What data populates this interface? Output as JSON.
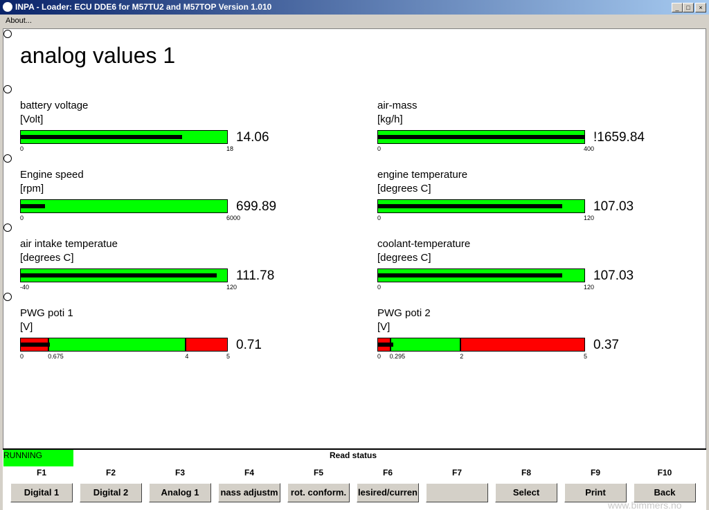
{
  "window": {
    "title": "INPA - Loader:  ECU DDE6 for M57TU2 and M57TOP Version 1.010"
  },
  "menu": [
    "About..."
  ],
  "heading": "analog values 1",
  "gauges": [
    {
      "label": "battery voltage",
      "unit": "[Volt]",
      "value": 14.06,
      "ticks": [
        0,
        18
      ],
      "colors": [
        "#00ff00"
      ]
    },
    {
      "label": "air-mass",
      "unit": "[kg/h]",
      "value": 1659.84,
      "value_label": "!1659.84",
      "ticks": [
        0,
        400
      ],
      "colors": [
        "#00ff00"
      ]
    },
    {
      "label": "Engine speed",
      "unit": "[rpm]",
      "value": 699.89,
      "ticks": [
        0,
        6000
      ],
      "colors": [
        "#00ff00"
      ]
    },
    {
      "label": "engine temperature",
      "unit": "[degrees C]",
      "value": 107.03,
      "ticks": [
        0,
        120
      ],
      "colors": [
        "#00ff00"
      ]
    },
    {
      "label": "air intake temperatue",
      "unit": "[degrees C]",
      "value": 111.78,
      "ticks": [
        -40,
        120
      ],
      "colors": [
        "#00ff00"
      ]
    },
    {
      "label": "coolant-temperature",
      "unit": "[degrees C]",
      "value": 107.03,
      "ticks": [
        0,
        120
      ],
      "colors": [
        "#00ff00"
      ]
    },
    {
      "label": "PWG poti 1",
      "unit": "[V]",
      "value": 0.71,
      "ticks": [
        0,
        0.675,
        4,
        5
      ],
      "colors": [
        "#ff0000",
        "#00ff00",
        "#ff0000"
      ]
    },
    {
      "label": "PWG poti 2",
      "unit": "[V]",
      "value": 0.37,
      "ticks": [
        0,
        0.295,
        2,
        5
      ],
      "colors": [
        "#ff0000",
        "#00ff00",
        "#ff0000"
      ]
    }
  ],
  "status": {
    "state": "RUNNING",
    "message": "Read status"
  },
  "buttons": [
    {
      "key": "F1",
      "label": "Digital 1"
    },
    {
      "key": "F2",
      "label": "Digital 2"
    },
    {
      "key": "F3",
      "label": "Analog 1"
    },
    {
      "key": "F4",
      "label": "nass adjustm"
    },
    {
      "key": "F5",
      "label": "rot. conform."
    },
    {
      "key": "F6",
      "label": "lesired/curren"
    },
    {
      "key": "F7"
    },
    {
      "key": "F8",
      "label": "Select"
    },
    {
      "key": "F9",
      "label": "Print"
    },
    {
      "key": "F10",
      "label": "Back"
    }
  ],
  "watermark": "www.bimmers.no"
}
